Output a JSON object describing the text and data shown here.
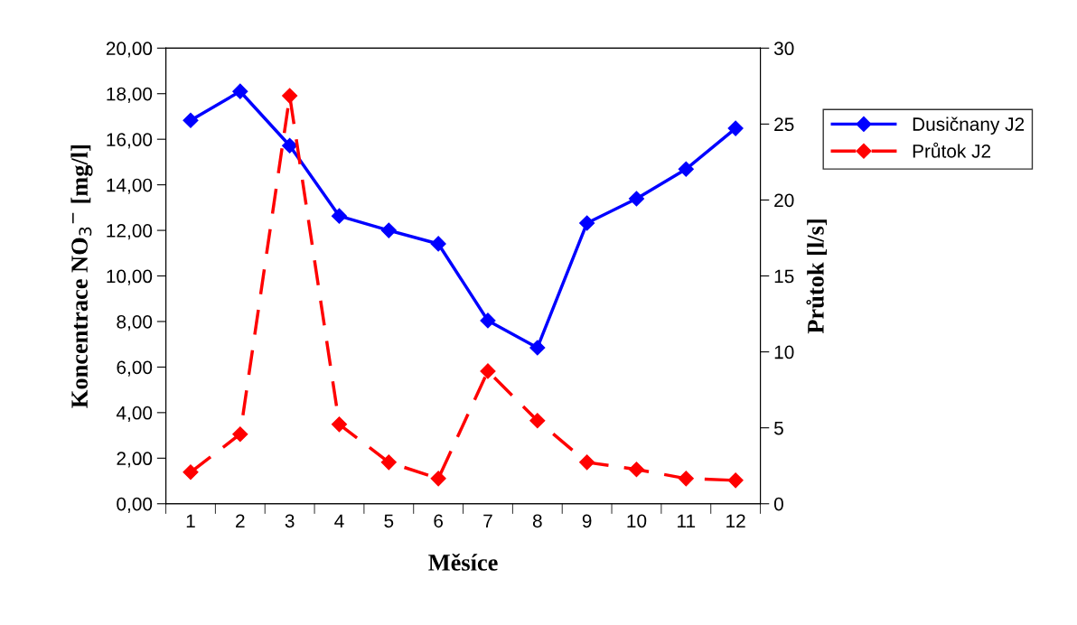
{
  "chart_data": {
    "type": "line",
    "xlabel": "Měsíce",
    "ylabel": "Koncentrace NO$_{3}$$^{−}$ [mg/l]",
    "y2label": "Průtok [l/s]",
    "categories": [
      "1",
      "2",
      "3",
      "4",
      "5",
      "6",
      "7",
      "8",
      "9",
      "10",
      "11",
      "12"
    ],
    "series": [
      {
        "name": "Dusičnany J2",
        "color": "#0000ff",
        "line_style": "solid",
        "values": [
          16.83,
          18.1,
          15.72,
          12.63,
          12.0,
          11.41,
          8.04,
          6.85,
          12.32,
          13.39,
          14.69,
          16.48
        ]
      },
      {
        "name": "Průtok J2",
        "color": "#ff0000",
        "line_style": "dashed",
        "axis": "y2",
        "values": [
          2.08,
          4.58,
          26.86,
          5.23,
          2.73,
          1.66,
          8.73,
          5.47,
          2.73,
          2.26,
          1.66,
          1.54
        ]
      }
    ],
    "ylim": [
      0,
      20
    ],
    "yticks": [
      {
        "value": 0,
        "label": "0,00"
      },
      {
        "value": 2,
        "label": "2,00"
      },
      {
        "value": 4,
        "label": "4,00"
      },
      {
        "value": 6,
        "label": "6,00"
      },
      {
        "value": 8,
        "label": "8,00"
      },
      {
        "value": 10,
        "label": "10,00"
      },
      {
        "value": 12,
        "label": "12,00"
      },
      {
        "value": 14,
        "label": "14,00"
      },
      {
        "value": 16,
        "label": "16,00"
      },
      {
        "value": 18,
        "label": "18,00"
      },
      {
        "value": 20,
        "label": "20,00"
      }
    ],
    "y2lim": [
      0,
      30
    ],
    "y2ticks": [
      0,
      5,
      10,
      15,
      20,
      25,
      30
    ],
    "marker": "diamond",
    "grid": false,
    "legend": "right"
  }
}
